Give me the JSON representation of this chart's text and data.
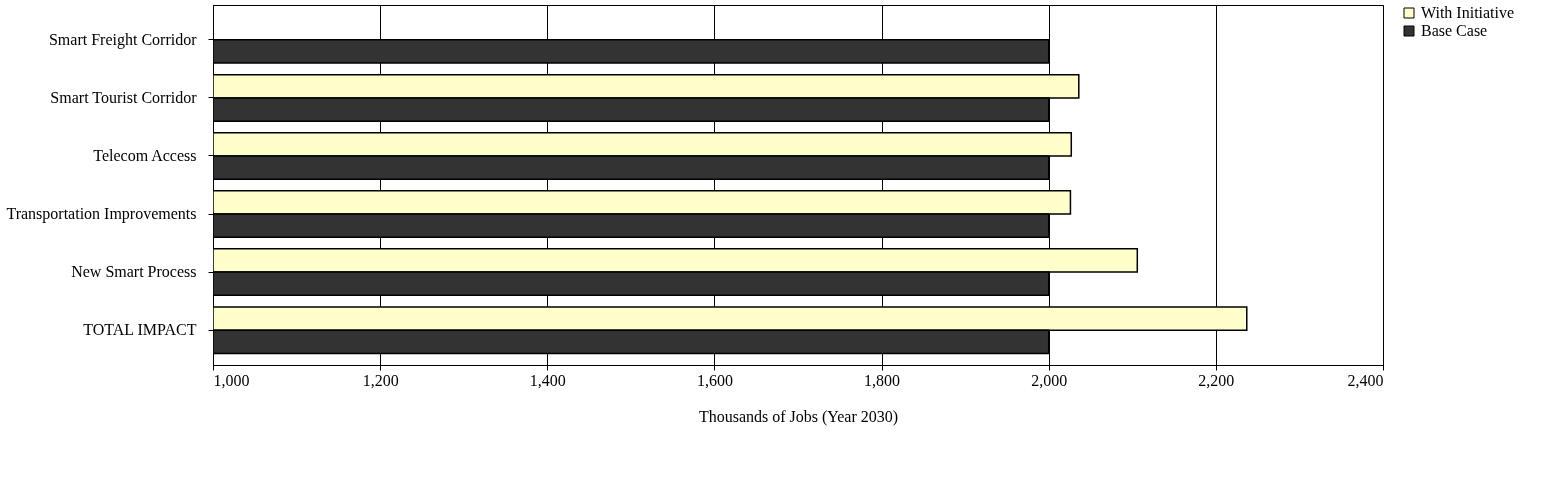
{
  "chart_data": {
    "type": "bar",
    "orientation": "horizontal",
    "categories": [
      "Smart Freight Corridor",
      "Smart Tourist Corridor",
      "Telecom Access",
      "Transportation Improvements",
      "New Smart Process",
      "TOTAL IMPACT"
    ],
    "series": [
      {
        "name": "With Initiative",
        "color": "#ffffcc",
        "values": [
          null,
          2036,
          2027,
          2026,
          2106,
          2237
        ]
      },
      {
        "name": "Base Case",
        "color": "#333333",
        "values": [
          2000,
          2000,
          2000,
          2000,
          2000,
          2000
        ]
      }
    ],
    "xlabel": "Thousands of Jobs (Year  2030)",
    "xlim": [
      1000,
      2400
    ],
    "xticks": [
      {
        "value": 1000,
        "label": "1,000"
      },
      {
        "value": 1200,
        "label": "1,200"
      },
      {
        "value": 1400,
        "label": "1,400"
      },
      {
        "value": 1600,
        "label": "1,600"
      },
      {
        "value": 1800,
        "label": "1,800"
      },
      {
        "value": 2000,
        "label": "2,000"
      },
      {
        "value": 2200,
        "label": "2,200"
      },
      {
        "value": 2400,
        "label": "2,400"
      }
    ],
    "grid": "x",
    "legend": "right"
  }
}
